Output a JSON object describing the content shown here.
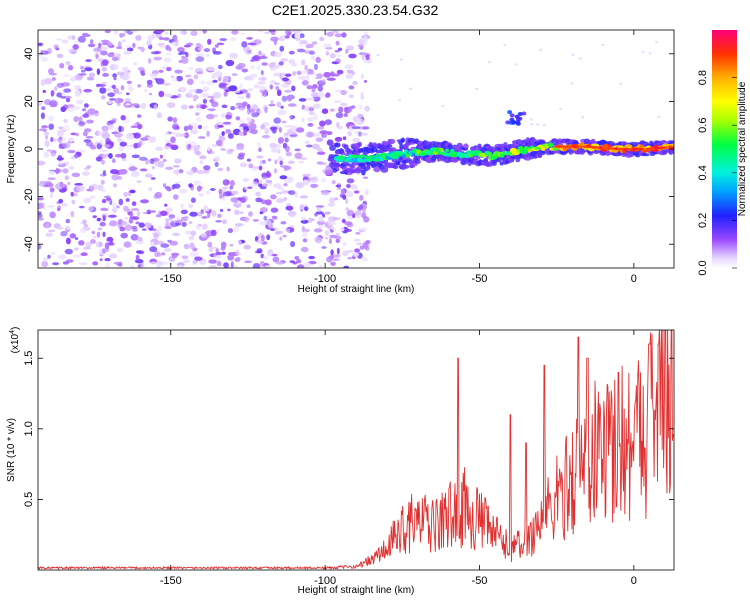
{
  "title": "C2E1.2025.330.23.54.G32",
  "chart_data": [
    {
      "type": "heatmap",
      "xlabel": "Height of straight line (km)",
      "ylabel": "Frequency (Hz)",
      "xlim": [
        -193,
        13
      ],
      "ylim": [
        -50,
        50
      ],
      "xticks": [
        -150,
        -100,
        -50,
        0
      ],
      "yticks": [
        -40,
        -20,
        0,
        20,
        40
      ],
      "colorbar": {
        "label": "Normalized spectral amplitude",
        "range": [
          0,
          1
        ],
        "ticks": [
          "0.0",
          "0.2",
          "0.4",
          "0.6",
          "0.8"
        ],
        "colormap": "rainbow"
      },
      "ridge": {
        "description_points": [
          [
            -95,
            -4
          ],
          [
            -85,
            -4
          ],
          [
            -75,
            -2
          ],
          [
            -65,
            -1
          ],
          [
            -55,
            -2
          ],
          [
            -45,
            -3
          ],
          [
            -35,
            0
          ],
          [
            -25,
            1
          ],
          [
            -15,
            1
          ],
          [
            -5,
            0
          ],
          [
            5,
            0
          ],
          [
            13,
            1
          ]
        ],
        "secondary_blob": [
          -38,
          13
        ]
      }
    },
    {
      "type": "line",
      "xlabel": "Height of straight line (km)",
      "ylabel": "SNR (10 * v/v)",
      "yscale_label": "(x10",
      "yscale_exp": "4",
      "xlim": [
        -193,
        13
      ],
      "ylim": [
        0,
        17000
      ],
      "xticks": [
        -150,
        -100,
        -50,
        0
      ],
      "yticks": [
        5000,
        10000,
        15000
      ],
      "ytick_labels": [
        "0.5",
        "1.0",
        "1.5"
      ],
      "color": "#e03030",
      "envelope": [
        [
          -193,
          150
        ],
        [
          -100,
          150
        ],
        [
          -90,
          250
        ],
        [
          -85,
          700
        ],
        [
          -80,
          1500
        ],
        [
          -75,
          3000
        ],
        [
          -70,
          3500
        ],
        [
          -65,
          3000
        ],
        [
          -60,
          3800
        ],
        [
          -55,
          4500
        ],
        [
          -50,
          3500
        ],
        [
          -45,
          2500
        ],
        [
          -40,
          1500
        ],
        [
          -35,
          2000
        ],
        [
          -30,
          3500
        ],
        [
          -25,
          5000
        ],
        [
          -20,
          6500
        ],
        [
          -15,
          8000
        ],
        [
          -10,
          8500
        ],
        [
          -5,
          9000
        ],
        [
          0,
          9500
        ],
        [
          5,
          10500
        ],
        [
          10,
          12000
        ],
        [
          13,
          13000
        ]
      ],
      "peaks": [
        [
          -57,
          15000
        ],
        [
          -40,
          11000
        ],
        [
          -18,
          16500
        ],
        [
          -15,
          15000
        ],
        [
          -5,
          14000
        ],
        [
          5,
          16000
        ],
        [
          8,
          16000
        ],
        [
          -35,
          9000
        ],
        [
          -29,
          14500
        ]
      ]
    }
  ]
}
